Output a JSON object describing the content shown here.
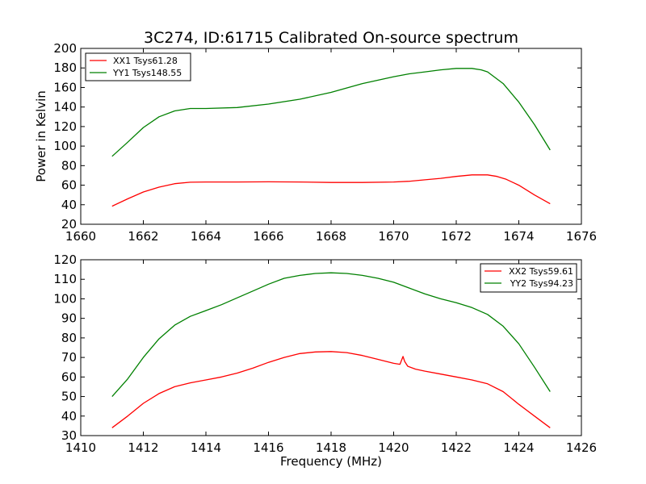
{
  "title": "3C274, ID:61715 Calibrated On-source spectrum",
  "colors": {
    "xx": "#ff0000",
    "yy": "#008000",
    "axes": "#000000",
    "background": "#ffffff"
  },
  "chart_data": [
    {
      "type": "line",
      "title": "3C274, ID:61715 Calibrated On-source spectrum",
      "xlabel": "",
      "ylabel": "Power in Kelvin",
      "xlim": [
        1660,
        1676
      ],
      "ylim": [
        20,
        200
      ],
      "xticks": [
        "1660",
        "1662",
        "1664",
        "1666",
        "1668",
        "1670",
        "1672",
        "1674",
        "1676"
      ],
      "yticks": [
        "20",
        "40",
        "60",
        "80",
        "100",
        "120",
        "140",
        "160",
        "180",
        "200"
      ],
      "grid": false,
      "legend_position": "top-left",
      "series": [
        {
          "name": "XX1 Tsys61.28",
          "color": "#ff0000",
          "x": [
            1661.0,
            1661.5,
            1662.0,
            1662.5,
            1663.0,
            1663.5,
            1664.0,
            1665.0,
            1666.0,
            1667.0,
            1668.0,
            1669.0,
            1670.0,
            1670.5,
            1671.0,
            1671.5,
            1672.0,
            1672.5,
            1673.0,
            1673.3,
            1673.6,
            1674.0,
            1674.5,
            1675.0
          ],
          "y": [
            38.5,
            46,
            53,
            58,
            61.5,
            63,
            63.3,
            63.3,
            63.4,
            63.3,
            62.8,
            62.8,
            63.3,
            64,
            65.5,
            67,
            69,
            70.5,
            70.5,
            69,
            66,
            60,
            50,
            41
          ]
        },
        {
          "name": "YY1 Tsys148.55",
          "color": "#008000",
          "x": [
            1661.0,
            1661.5,
            1662.0,
            1662.5,
            1663.0,
            1663.5,
            1664.0,
            1665.0,
            1666.0,
            1667.0,
            1668.0,
            1669.0,
            1670.0,
            1670.5,
            1671.0,
            1671.5,
            1672.0,
            1672.5,
            1672.8,
            1673.0,
            1673.5,
            1674.0,
            1674.5,
            1675.0
          ],
          "y": [
            89.5,
            104,
            119,
            130,
            136,
            138.5,
            138.5,
            139.5,
            143,
            148,
            155,
            164,
            171,
            174,
            176,
            178,
            179.5,
            179.5,
            178,
            176,
            164,
            145,
            122,
            96
          ]
        }
      ]
    },
    {
      "type": "line",
      "title": "",
      "xlabel": "Frequency (MHz)",
      "ylabel": "",
      "xlim": [
        1410,
        1426
      ],
      "ylim": [
        30,
        120
      ],
      "xticks": [
        "1410",
        "1412",
        "1414",
        "1416",
        "1418",
        "1420",
        "1422",
        "1424",
        "1426"
      ],
      "yticks": [
        "30",
        "40",
        "50",
        "60",
        "70",
        "80",
        "90",
        "100",
        "110",
        "120"
      ],
      "grid": false,
      "legend_position": "top-right",
      "series": [
        {
          "name": "XX2 Tsys59.61",
          "color": "#ff0000",
          "x": [
            1411.0,
            1411.5,
            1412.0,
            1412.5,
            1413.0,
            1413.5,
            1414.0,
            1414.5,
            1415.0,
            1415.5,
            1416.0,
            1416.5,
            1417.0,
            1417.5,
            1418.0,
            1418.5,
            1419.0,
            1419.5,
            1420.0,
            1420.2,
            1420.3,
            1420.35,
            1420.45,
            1420.7,
            1421.0,
            1421.5,
            1422.0,
            1422.5,
            1423.0,
            1423.5,
            1424.0,
            1424.5,
            1425.0
          ],
          "y": [
            34,
            40,
            46.5,
            51.5,
            55,
            57,
            58.5,
            60,
            62,
            64.5,
            67.5,
            70,
            72,
            72.8,
            73,
            72.5,
            71,
            69,
            67,
            66.5,
            70.5,
            68,
            65.5,
            64,
            63,
            61.5,
            60,
            58.5,
            56.5,
            52.5,
            46,
            40,
            34
          ]
        },
        {
          "name": "YY2 Tsys94.23",
          "color": "#008000",
          "x": [
            1411.0,
            1411.5,
            1412.0,
            1412.5,
            1413.0,
            1413.5,
            1414.0,
            1414.5,
            1415.0,
            1415.5,
            1416.0,
            1416.5,
            1417.0,
            1417.5,
            1418.0,
            1418.5,
            1419.0,
            1419.5,
            1420.0,
            1420.5,
            1421.0,
            1421.5,
            1422.0,
            1422.5,
            1423.0,
            1423.5,
            1424.0,
            1424.5,
            1425.0
          ],
          "y": [
            50,
            59,
            70,
            79.5,
            86.5,
            91,
            94,
            97,
            100.5,
            104,
            107.5,
            110.5,
            112,
            113,
            113.3,
            113,
            112,
            110.5,
            108.5,
            105.5,
            102.5,
            100,
            98,
            95.5,
            92,
            86,
            77,
            65,
            52.5
          ]
        }
      ]
    }
  ]
}
